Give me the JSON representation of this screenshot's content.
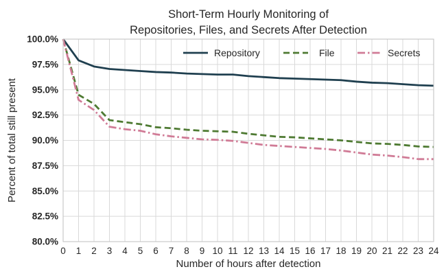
{
  "chart_data": {
    "type": "line",
    "title_lines": [
      "Short-Term Hourly Monitoring of",
      "Repositories, Files, and Secrets After Detection"
    ],
    "xlabel": "Number of hours after detection",
    "ylabel": "Percent of total still present",
    "x": [
      0,
      1,
      2,
      3,
      4,
      5,
      6,
      7,
      8,
      9,
      10,
      11,
      12,
      13,
      14,
      15,
      16,
      17,
      18,
      19,
      20,
      21,
      22,
      23,
      24
    ],
    "xlim": [
      0,
      24
    ],
    "ylim": [
      80.0,
      100.0
    ],
    "yticks": [
      80.0,
      82.5,
      85.0,
      87.5,
      90.0,
      92.5,
      95.0,
      97.5,
      100.0
    ],
    "ytick_labels": [
      "80.0%",
      "82.5%",
      "85.0%",
      "87.5%",
      "90.0%",
      "92.5%",
      "95.0%",
      "97.5%",
      "100.0%"
    ],
    "grid": true,
    "legend_placement": "top-right",
    "series": [
      {
        "name": "Repository",
        "color": "#1f3f4f",
        "dash": "solid",
        "values": [
          100.0,
          97.9,
          97.3,
          97.05,
          96.95,
          96.85,
          96.75,
          96.7,
          96.6,
          96.55,
          96.5,
          96.5,
          96.35,
          96.25,
          96.15,
          96.1,
          96.05,
          96.0,
          95.95,
          95.8,
          95.7,
          95.65,
          95.55,
          95.45,
          95.4
        ]
      },
      {
        "name": "File",
        "color": "#4e7a32",
        "dash": "dashed",
        "values": [
          100.0,
          94.5,
          93.6,
          92.0,
          91.8,
          91.6,
          91.3,
          91.2,
          91.05,
          90.95,
          90.9,
          90.85,
          90.65,
          90.5,
          90.35,
          90.3,
          90.2,
          90.1,
          90.0,
          89.85,
          89.7,
          89.65,
          89.55,
          89.4,
          89.35
        ]
      },
      {
        "name": "Secrets",
        "color": "#d07b96",
        "dash": "dashdot",
        "values": [
          100.0,
          94.0,
          93.0,
          91.35,
          91.1,
          90.95,
          90.6,
          90.4,
          90.25,
          90.1,
          90.05,
          89.95,
          89.75,
          89.55,
          89.45,
          89.35,
          89.25,
          89.15,
          89.0,
          88.8,
          88.6,
          88.5,
          88.35,
          88.15,
          88.15
        ]
      }
    ]
  }
}
